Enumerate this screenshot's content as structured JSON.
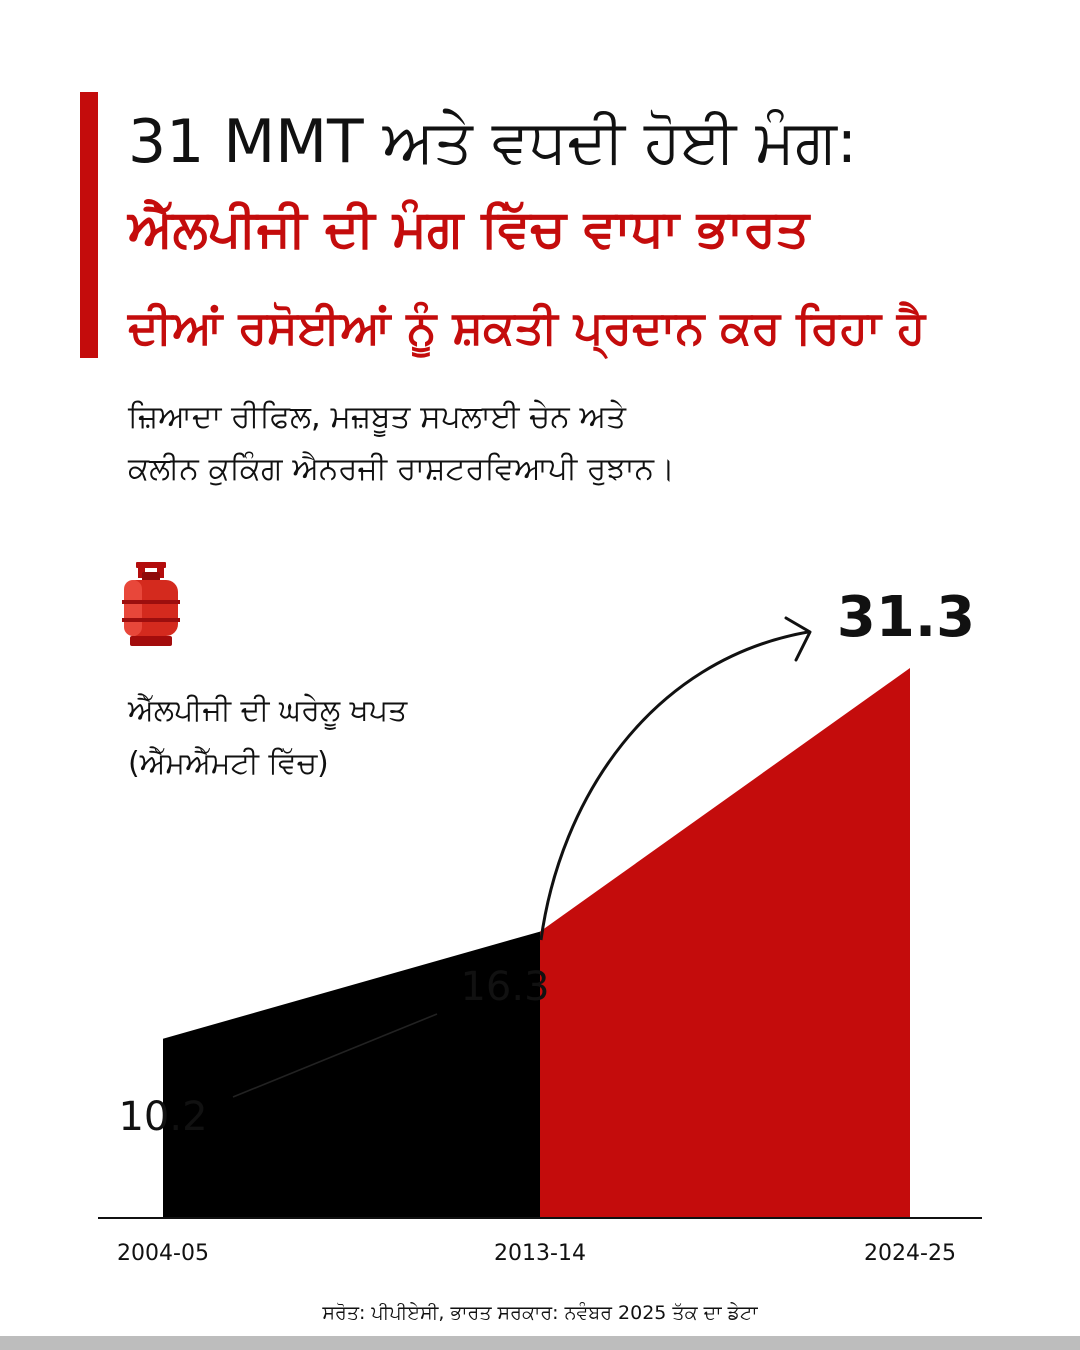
{
  "header": {
    "title_line1": "31 MMT ਅਤੇ ਵਧਦੀ ਹੋਈ ਮੰਗ:",
    "title_line2": "ਐੱਲਪੀਜੀ ਦੀ ਮੰਗ ਵਿੱਚ ਵਾਧਾ ਭਾਰਤ",
    "title_line3": "ਦੀਆਂ ਰਸੋਈਆਂ ਨੂੰ ਸ਼ਕਤੀ ਪ੍ਰਦਾਨ ਕਰ ਰਿਹਾ ਹੈ",
    "subtitle_line1": "ਜ਼ਿਆਦਾ ਰੀਫਿਲ, ਮਜ਼ਬੂਤ ਸਪਲਾਈ ਚੇਨ ਅਤੇ",
    "subtitle_line2": "ਕਲੀਨ ਕੁਕਿੰਗ ਐਨਰਜੀ ਰਾਸ਼ਟਰਵਿਆਪੀ ਰੁਝਾਨ।"
  },
  "colors": {
    "accent": "#c40c0c",
    "dark": "#000000",
    "text": "#111111"
  },
  "icon": "lpg-cylinder-icon",
  "chart_data": {
    "type": "area",
    "ylabel_line1": "ਐੱਲਪੀਜੀ ਦੀ ਘਰੇਲੂ ਖਪਤ",
    "ylabel_line2": "(ਐੱਮਐੱਮਟੀ ਵਿੱਚ)",
    "categories": [
      "2004-05",
      "2013-14",
      "2024-25"
    ],
    "values": [
      10.2,
      16.3,
      31.3
    ],
    "value_labels": [
      "10.2",
      "16.3",
      "31.3"
    ],
    "ylim": [
      0,
      31.3
    ],
    "grid": false,
    "legend": "none"
  },
  "footer": {
    "source": "ਸਰੋਤ: ਪੀਪੀਏਸੀ, ਭਾਰਤ ਸਰਕਾਰ: ਨਵੰਬਰ 2025 ਤੱਕ ਦਾ ਡੇਟਾ"
  }
}
